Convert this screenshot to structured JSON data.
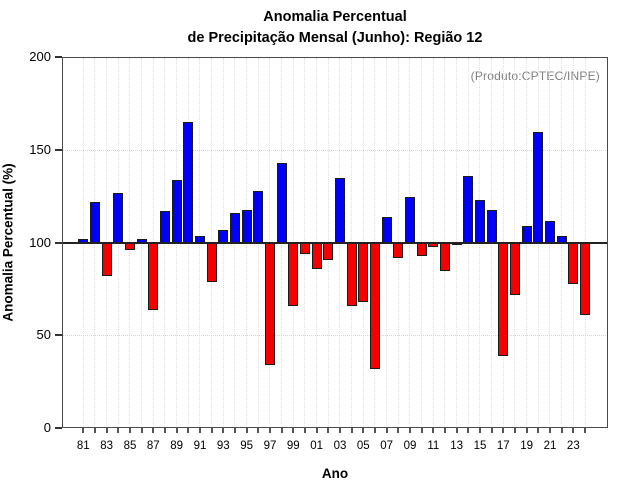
{
  "title": {
    "line1": "Anomalia Percentual",
    "line2": "de Precipitação Mensal (Junho): Região 12"
  },
  "annotation": "(Produto:CPTEC/INPE)",
  "chart_data": {
    "type": "bar",
    "title": "Anomalia Percentual de Precipitação Mensal (Junho): Região 12",
    "xlabel": "Ano",
    "ylabel": "Anomalia Percentual (%)",
    "ylim": [
      0,
      200
    ],
    "yticks": [
      0,
      50,
      100,
      150,
      200
    ],
    "baseline": 100,
    "grid": "dotted gray horizontal at 50/100/150 and vertical at every year",
    "legend": "none",
    "label_every": 2,
    "categories": [
      "81",
      "82",
      "83",
      "84",
      "85",
      "86",
      "87",
      "88",
      "89",
      "90",
      "91",
      "92",
      "93",
      "94",
      "95",
      "96",
      "97",
      "98",
      "99",
      "00",
      "01",
      "02",
      "03",
      "04",
      "05",
      "06",
      "07",
      "08",
      "09",
      "10",
      "11",
      "12",
      "13",
      "14",
      "15",
      "16",
      "17",
      "18",
      "19",
      "20",
      "21",
      "22",
      "23",
      "24"
    ],
    "values": [
      102,
      122,
      82,
      127,
      96,
      102,
      64,
      117,
      134,
      165,
      104,
      79,
      107,
      116,
      118,
      128,
      34,
      143,
      66,
      94,
      86,
      91,
      135,
      66,
      68,
      32,
      114,
      92,
      125,
      93,
      98,
      85,
      99.5,
      136,
      123,
      118,
      39,
      72,
      109,
      160,
      112,
      104,
      78,
      61
    ],
    "colors": {
      "above_baseline": "#0000f5",
      "below_baseline": "#f50000",
      "bar_outline": "#1a1a1a",
      "baseline_line": "#222222",
      "grid_line": "#d4d4d4",
      "annotation_text": "#808080",
      "frame": "#4a4a4a"
    }
  }
}
